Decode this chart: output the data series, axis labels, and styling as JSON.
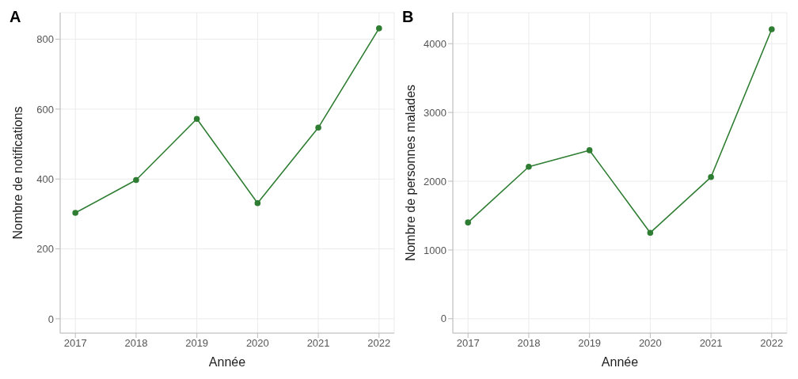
{
  "chart_data": [
    {
      "type": "line",
      "title": "A",
      "xlabel": "Année",
      "ylabel": "Nombre de notifications",
      "x": [
        2017,
        2018,
        2019,
        2020,
        2021,
        2022
      ],
      "series": [
        {
          "color": "#2e7d32",
          "values": [
            303,
            397,
            572,
            331,
            547,
            831
          ]
        }
      ],
      "xlim": [
        2016.75,
        2022.25
      ],
      "xticks": [
        2017,
        2018,
        2019,
        2020,
        2021,
        2022
      ],
      "ylim": [
        -41,
        876
      ],
      "yticks": [
        0,
        200,
        400,
        600,
        800
      ],
      "grid": true,
      "marker": "circle",
      "line_style": "solid"
    },
    {
      "type": "line",
      "title": "B",
      "xlabel": "Année",
      "ylabel": "Nombre de personnes malades",
      "x": [
        2017,
        2018,
        2019,
        2020,
        2021,
        2022
      ],
      "series": [
        {
          "color": "#2e7d32",
          "values": [
            1400,
            2210,
            2450,
            1250,
            2060,
            4210
          ]
        }
      ],
      "xlim": [
        2016.75,
        2022.25
      ],
      "xticks": [
        2017,
        2018,
        2019,
        2020,
        2021,
        2022
      ],
      "ylim": [
        -209,
        4451
      ],
      "yticks": [
        0,
        1000,
        2000,
        3000,
        4000
      ],
      "grid": true,
      "marker": "circle",
      "line_style": "solid"
    }
  ]
}
